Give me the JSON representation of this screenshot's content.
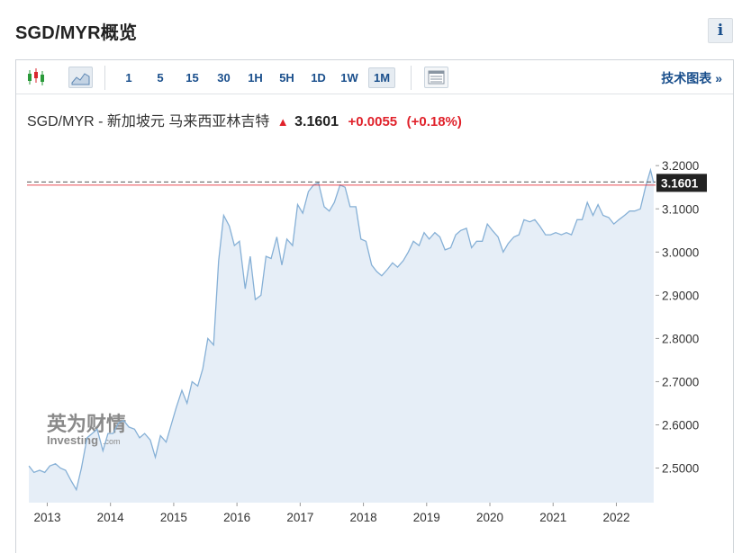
{
  "page": {
    "title": "SGD/MYR概览",
    "info_label": "i"
  },
  "toolbar": {
    "chart_type_icons": [
      "candlestick-chart-icon",
      "area-chart-icon"
    ],
    "ranges": [
      "1",
      "5",
      "15",
      "30",
      "1H",
      "5H",
      "1D",
      "1W",
      "1M"
    ],
    "active_range": "1M",
    "table_icon": "table-view-icon",
    "tech_chart_label": "技术图表",
    "tech_chart_arrow": "»"
  },
  "quote": {
    "name": "SGD/MYR - 新加坡元 马来西亚林吉特",
    "arrow": "▲",
    "price": "3.1601",
    "change": "+0.0055",
    "change_pct": "(+0.18%)"
  },
  "watermark": {
    "cn": "英为财情",
    "en": "Investing",
    "suffix": ".com"
  },
  "colors": {
    "line": "#86b0d6",
    "fill": "#e6eef7",
    "up": "#e0222b",
    "brand": "#1a4f8c",
    "current_label_bg": "#222222"
  },
  "chart_data": {
    "type": "area",
    "title": "",
    "xlabel": "",
    "ylabel": "",
    "ylim": [
      2.42,
      3.24
    ],
    "xlim": [
      2012.68,
      2022.62
    ],
    "y_ticks": [
      "3.2000",
      "3.1000",
      "3.0000",
      "2.9000",
      "2.8000",
      "2.7000",
      "2.6000",
      "2.5000"
    ],
    "y_tick_values": [
      3.2,
      3.1,
      3.0,
      2.9,
      2.8,
      2.7,
      2.6,
      2.5
    ],
    "x_ticks": [
      "2013",
      "2014",
      "2015",
      "2016",
      "2017",
      "2018",
      "2019",
      "2020",
      "2021",
      "2022"
    ],
    "x_tick_values": [
      2013,
      2014,
      2015,
      2016,
      2017,
      2018,
      2019,
      2020,
      2021,
      2022
    ],
    "current_value": 3.1601,
    "current_label": "3.1601",
    "grid": false,
    "series": [
      {
        "x": [
          2012.71,
          2012.79,
          2012.88,
          2012.96,
          2013.04,
          2013.13,
          2013.21,
          2013.29,
          2013.38,
          2013.46,
          2013.54,
          2013.63,
          2013.71,
          2013.79,
          2013.88,
          2013.96,
          2014.04,
          2014.13,
          2014.21,
          2014.29,
          2014.38,
          2014.46,
          2014.54,
          2014.63,
          2014.71,
          2014.79,
          2014.88,
          2014.96,
          2015.04,
          2015.13,
          2015.21,
          2015.29,
          2015.38,
          2015.46,
          2015.54,
          2015.63,
          2015.71,
          2015.79,
          2015.88,
          2015.96,
          2016.04,
          2016.13,
          2016.21,
          2016.29,
          2016.38,
          2016.46,
          2016.54,
          2016.63,
          2016.71,
          2016.79,
          2016.88,
          2016.96,
          2017.04,
          2017.13,
          2017.21,
          2017.29,
          2017.38,
          2017.46,
          2017.54,
          2017.63,
          2017.71,
          2017.79,
          2017.88,
          2017.96,
          2018.04,
          2018.13,
          2018.21,
          2018.29,
          2018.38,
          2018.46,
          2018.54,
          2018.63,
          2018.71,
          2018.79,
          2018.88,
          2018.96,
          2019.04,
          2019.13,
          2019.21,
          2019.29,
          2019.38,
          2019.46,
          2019.54,
          2019.63,
          2019.71,
          2019.79,
          2019.88,
          2019.96,
          2020.04,
          2020.13,
          2020.21,
          2020.29,
          2020.38,
          2020.46,
          2020.54,
          2020.63,
          2020.71,
          2020.79,
          2020.88,
          2020.96,
          2021.04,
          2021.13,
          2021.21,
          2021.29,
          2021.38,
          2021.46,
          2021.54,
          2021.63,
          2021.71,
          2021.79,
          2021.88,
          2021.96,
          2022.04,
          2022.13,
          2022.21,
          2022.29,
          2022.38,
          2022.46,
          2022.54,
          2022.59
        ],
        "y": [
          2.505,
          2.49,
          2.495,
          2.49,
          2.505,
          2.51,
          2.5,
          2.495,
          2.47,
          2.45,
          2.5,
          2.57,
          2.58,
          2.59,
          2.54,
          2.58,
          2.58,
          2.605,
          2.61,
          2.595,
          2.59,
          2.57,
          2.58,
          2.565,
          2.525,
          2.575,
          2.56,
          2.6,
          2.64,
          2.68,
          2.65,
          2.7,
          2.69,
          2.73,
          2.8,
          2.785,
          2.98,
          3.085,
          3.06,
          3.015,
          3.025,
          2.915,
          2.99,
          2.89,
          2.9,
          2.99,
          2.985,
          3.035,
          2.97,
          3.03,
          3.015,
          3.11,
          3.09,
          3.14,
          3.155,
          3.16,
          3.105,
          3.095,
          3.115,
          3.155,
          3.15,
          3.105,
          3.105,
          3.03,
          3.025,
          2.97,
          2.955,
          2.945,
          2.96,
          2.975,
          2.965,
          2.98,
          3.0,
          3.025,
          3.015,
          3.045,
          3.03,
          3.045,
          3.035,
          3.005,
          3.01,
          3.04,
          3.05,
          3.055,
          3.01,
          3.025,
          3.025,
          3.065,
          3.05,
          3.035,
          3.0,
          3.02,
          3.035,
          3.04,
          3.075,
          3.07,
          3.075,
          3.06,
          3.04,
          3.04,
          3.045,
          3.04,
          3.045,
          3.04,
          3.075,
          3.075,
          3.115,
          3.085,
          3.11,
          3.085,
          3.08,
          3.065,
          3.075,
          3.085,
          3.095,
          3.095,
          3.1,
          3.15,
          3.19,
          3.16
        ]
      }
    ]
  }
}
